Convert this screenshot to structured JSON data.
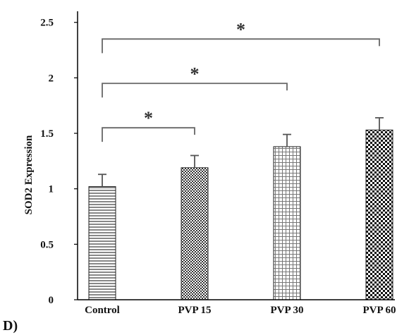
{
  "chart_data": {
    "type": "bar",
    "ylabel": "SOD2 Expression",
    "panel_label": "D)",
    "categories": [
      "Control",
      "PVP 15",
      "PVP 30",
      "PVP 60"
    ],
    "values": [
      1.02,
      1.19,
      1.38,
      1.53
    ],
    "errors": [
      0.11,
      0.11,
      0.11,
      0.11
    ],
    "y_ticks": [
      "0",
      "0.5",
      "1",
      "1.5",
      "2",
      "2.5"
    ],
    "ylim": [
      0,
      2.6
    ],
    "grid": false,
    "patterns": [
      "horizontal-lines",
      "small-checker",
      "grid",
      "large-checker"
    ],
    "significance": [
      {
        "from": "Control",
        "to": "PVP 15",
        "label": "*",
        "y": 1.55
      },
      {
        "from": "Control",
        "to": "PVP 30",
        "label": "*",
        "y": 1.95
      },
      {
        "from": "Control",
        "to": "PVP 60",
        "label": "*",
        "y": 2.35
      }
    ]
  }
}
